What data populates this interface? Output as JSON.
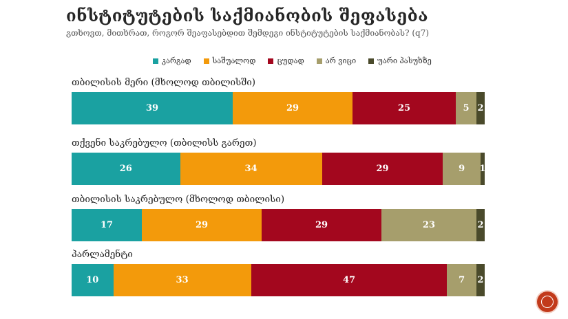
{
  "title": "ინსტიტუტების საქმიანობის შეფასება",
  "subtitle": "გთხოვთ, მითხრათ, როგორ შეაფასებდით  შემდეგი ინსტიტუტების საქმიანობას? (q7)",
  "colors": {
    "good": "#1aa1a1",
    "average": "#f39a0b",
    "bad": "#a3071e",
    "dont_know": "#a69e6c",
    "refuse": "#4a4a2b"
  },
  "chart_data": {
    "type": "bar",
    "orientation": "horizontal-stacked-100",
    "legend_position": "top",
    "series_names": [
      "კარგად",
      "საშუალოდ",
      "ცუდად",
      "არ ვიცი",
      "უარი პასუხზე"
    ],
    "groups": [
      {
        "label": "თბილისის მერი (მხოლოდ თბილისში)",
        "values": [
          39,
          29,
          25,
          5,
          2
        ]
      },
      {
        "label": "თქვენი საკრებულო (თბილისს გარეთ)",
        "values": [
          26,
          34,
          29,
          9,
          1
        ]
      },
      {
        "label": "თბილისის საკრებულო (მხოლოდ თბილისი)",
        "values": [
          17,
          29,
          29,
          23,
          2
        ]
      },
      {
        "label": "პარლამენტი",
        "values": [
          10,
          33,
          47,
          7,
          2
        ]
      }
    ]
  }
}
